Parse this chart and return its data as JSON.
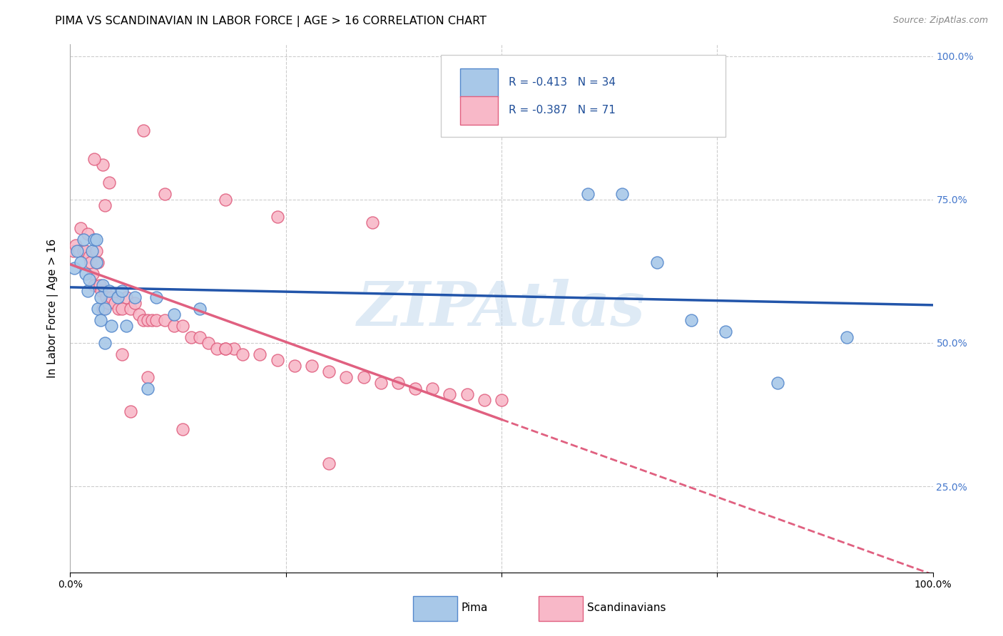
{
  "title": "PIMA VS SCANDINAVIAN IN LABOR FORCE | AGE > 16 CORRELATION CHART",
  "source_text": "Source: ZipAtlas.com",
  "ylabel": "In Labor Force | Age > 16",
  "xlim": [
    0.0,
    1.0
  ],
  "ylim": [
    0.1,
    1.02
  ],
  "x_ticks": [
    0.0,
    0.25,
    0.5,
    0.75,
    1.0
  ],
  "x_tick_labels": [
    "0.0%",
    "",
    "",
    "",
    "100.0%"
  ],
  "y_ticks": [
    0.25,
    0.5,
    0.75,
    1.0
  ],
  "y_tick_labels": [
    "25.0%",
    "50.0%",
    "75.0%",
    "100.0%"
  ],
  "pima_color": "#A8C8E8",
  "pima_edge_color": "#5588CC",
  "scandinavian_color": "#F8B8C8",
  "scandinavian_edge_color": "#E06080",
  "trend_pima_color": "#2255AA",
  "trend_scand_color": "#E06080",
  "R_pima": -0.413,
  "N_pima": 34,
  "R_scand": -0.387,
  "N_scand": 71,
  "background_color": "#FFFFFF",
  "grid_color": "#CCCCCC",
  "watermark": "ZIPAtlas",
  "pima_x": [
    0.005,
    0.008,
    0.012,
    0.015,
    0.018,
    0.02,
    0.022,
    0.025,
    0.028,
    0.03,
    0.032,
    0.035,
    0.038,
    0.04,
    0.045,
    0.048,
    0.055,
    0.06,
    0.065,
    0.075,
    0.09,
    0.1,
    0.12,
    0.15,
    0.03,
    0.035,
    0.04,
    0.6,
    0.64,
    0.68,
    0.72,
    0.76,
    0.82,
    0.9
  ],
  "pima_y": [
    0.63,
    0.66,
    0.64,
    0.68,
    0.62,
    0.59,
    0.61,
    0.66,
    0.68,
    0.64,
    0.56,
    0.58,
    0.6,
    0.56,
    0.59,
    0.53,
    0.58,
    0.59,
    0.53,
    0.58,
    0.42,
    0.58,
    0.55,
    0.56,
    0.68,
    0.54,
    0.5,
    0.76,
    0.76,
    0.64,
    0.54,
    0.52,
    0.43,
    0.51
  ],
  "scand_x": [
    0.004,
    0.006,
    0.01,
    0.012,
    0.015,
    0.018,
    0.02,
    0.022,
    0.024,
    0.026,
    0.028,
    0.03,
    0.032,
    0.034,
    0.036,
    0.038,
    0.04,
    0.042,
    0.044,
    0.048,
    0.052,
    0.056,
    0.06,
    0.065,
    0.07,
    0.075,
    0.08,
    0.085,
    0.09,
    0.095,
    0.1,
    0.11,
    0.12,
    0.13,
    0.14,
    0.15,
    0.16,
    0.17,
    0.18,
    0.19,
    0.2,
    0.22,
    0.24,
    0.26,
    0.28,
    0.3,
    0.32,
    0.34,
    0.36,
    0.38,
    0.4,
    0.42,
    0.44,
    0.46,
    0.48,
    0.5,
    0.038,
    0.045,
    0.085,
    0.11,
    0.18,
    0.24,
    0.35,
    0.18,
    0.09,
    0.06,
    0.04,
    0.028,
    0.07,
    0.13,
    0.3
  ],
  "scand_y": [
    0.66,
    0.67,
    0.66,
    0.7,
    0.66,
    0.66,
    0.69,
    0.65,
    0.64,
    0.62,
    0.6,
    0.66,
    0.64,
    0.6,
    0.59,
    0.56,
    0.59,
    0.58,
    0.57,
    0.58,
    0.57,
    0.56,
    0.56,
    0.58,
    0.56,
    0.57,
    0.55,
    0.54,
    0.54,
    0.54,
    0.54,
    0.54,
    0.53,
    0.53,
    0.51,
    0.51,
    0.5,
    0.49,
    0.49,
    0.49,
    0.48,
    0.48,
    0.47,
    0.46,
    0.46,
    0.45,
    0.44,
    0.44,
    0.43,
    0.43,
    0.42,
    0.42,
    0.41,
    0.41,
    0.4,
    0.4,
    0.81,
    0.78,
    0.87,
    0.76,
    0.75,
    0.72,
    0.71,
    0.49,
    0.44,
    0.48,
    0.74,
    0.82,
    0.38,
    0.35,
    0.29
  ]
}
